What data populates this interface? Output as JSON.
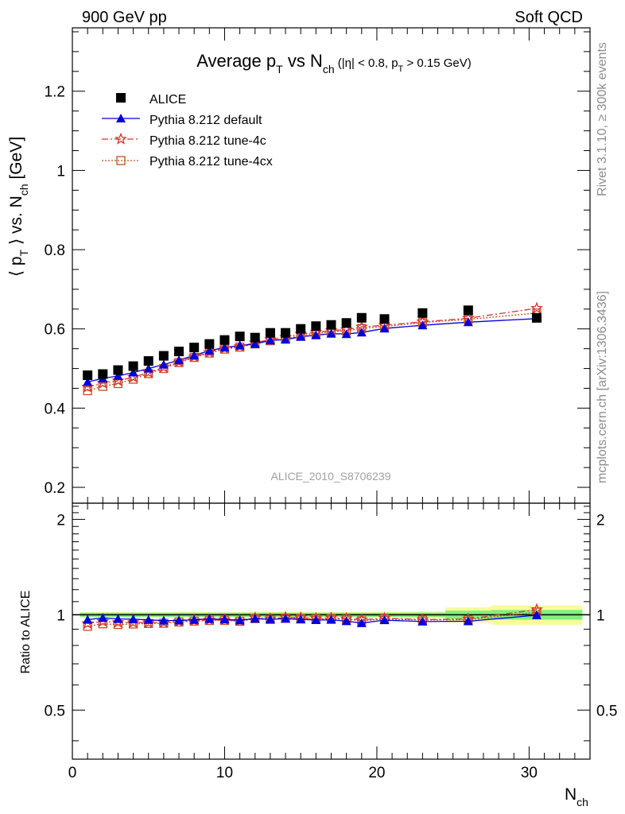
{
  "header": {
    "left": "900 GeV pp",
    "right": "Soft QCD"
  },
  "side_labels": {
    "upper": "Rivet 3.1.10, ≥ 300k events",
    "lower": "mcplots.cern.ch [arXiv:1306.3436]"
  },
  "chart_data": {
    "type": "scatter",
    "title": {
      "main": "Average p",
      "sub_t": "T",
      "vs": " vs N",
      "sub_ch": "ch",
      "cut_open": " (|η| < 0.8, p",
      "cut_sub": "T",
      "cut_close": " > 0.15 GeV)"
    },
    "analysis_id": "ALICE_2010_S8706239",
    "ylabel": {
      "open": "⟨ p",
      "sub": "T",
      "close": " ⟩ vs. N",
      "sub2": "ch",
      "unit": " [GeV]"
    },
    "ratio_ylabel": "Ratio to ALICE",
    "xlabel": {
      "main": "N",
      "sub": "ch"
    },
    "xlim": [
      0,
      34
    ],
    "ylim": [
      0.16,
      1.36
    ],
    "ratio_ylim": [
      0.35,
      2.25
    ],
    "xticks": [
      0,
      10,
      20,
      30
    ],
    "yticks": [
      0.2,
      0.4,
      0.6,
      0.8,
      1,
      1.2
    ],
    "ratio_yticks": [
      0.5,
      1,
      2
    ],
    "legend": [
      "ALICE",
      "Pythia 8.212 default",
      "Pythia 8.212 tune-4c",
      "Pythia 8.212 tune-4cx"
    ],
    "colors": {
      "data": "#000000",
      "default": "#0000dd",
      "tune4c": "#e03030",
      "tune4cx": "#c0501f",
      "band_green": "#7ef07e",
      "band_yellow": "#fafa9a"
    },
    "x": [
      1,
      2,
      3,
      4,
      5,
      6,
      7,
      8,
      9,
      10,
      11,
      12,
      13,
      14,
      15,
      16,
      17,
      18,
      19,
      20.5,
      23,
      26,
      30.5
    ],
    "alice": [
      0.483,
      0.486,
      0.496,
      0.506,
      0.519,
      0.532,
      0.543,
      0.553,
      0.562,
      0.572,
      0.581,
      0.578,
      0.59,
      0.59,
      0.6,
      0.607,
      0.61,
      0.615,
      0.628,
      0.625,
      0.64,
      0.647,
      0.628
    ],
    "default": [
      0.466,
      0.475,
      0.481,
      0.49,
      0.5,
      0.51,
      0.521,
      0.533,
      0.545,
      0.553,
      0.558,
      0.562,
      0.571,
      0.573,
      0.58,
      0.584,
      0.588,
      0.587,
      0.591,
      0.601,
      0.609,
      0.617,
      0.626
    ],
    "tune4c": [
      0.453,
      0.463,
      0.469,
      0.478,
      0.49,
      0.503,
      0.517,
      0.53,
      0.541,
      0.551,
      0.556,
      0.565,
      0.573,
      0.579,
      0.587,
      0.591,
      0.596,
      0.598,
      0.605,
      0.609,
      0.618,
      0.627,
      0.652
    ],
    "tune4cx": [
      0.444,
      0.455,
      0.462,
      0.473,
      0.487,
      0.5,
      0.515,
      0.528,
      0.539,
      0.549,
      0.554,
      0.562,
      0.57,
      0.575,
      0.583,
      0.588,
      0.593,
      0.595,
      0.601,
      0.606,
      0.616,
      0.624,
      0.64
    ],
    "band": {
      "edges": [
        0.5,
        1.5,
        2.5,
        3.5,
        4.5,
        5.5,
        6.5,
        7.5,
        8.5,
        9.5,
        10.5,
        11.5,
        12.5,
        13.5,
        14.5,
        15.5,
        16.5,
        17.5,
        18.5,
        19.5,
        21.5,
        24.5,
        27.5,
        33.5
      ],
      "green": [
        0.015,
        0.015,
        0.015,
        0.015,
        0.015,
        0.015,
        0.015,
        0.015,
        0.015,
        0.015,
        0.015,
        0.015,
        0.015,
        0.015,
        0.015,
        0.015,
        0.015,
        0.015,
        0.015,
        0.015,
        0.016,
        0.03,
        0.035
      ],
      "yellow": [
        0.02,
        0.02,
        0.02,
        0.02,
        0.02,
        0.02,
        0.02,
        0.02,
        0.02,
        0.02,
        0.02,
        0.02,
        0.02,
        0.02,
        0.02,
        0.02,
        0.02,
        0.02,
        0.02,
        0.02,
        0.025,
        0.055,
        0.07
      ]
    }
  }
}
